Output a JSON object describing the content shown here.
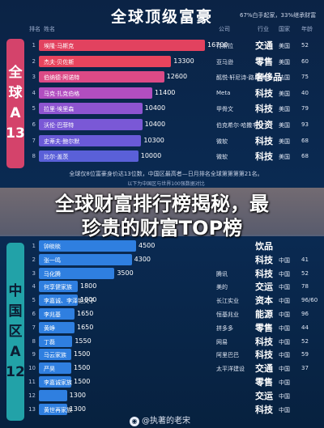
{
  "title": "全球顶级富豪",
  "top_note": "67%白手起家，33%继承财富",
  "global_section": {
    "side_label": [
      "全",
      "球",
      "A",
      "13"
    ],
    "headers": {
      "rank": "排名",
      "name": "姓名",
      "company": "公司",
      "industry": "行业",
      "country": "国家",
      "age": "年龄"
    },
    "rows": [
      {
        "rank": "1",
        "name": "埃隆·马斯克",
        "value": 16700,
        "company": "特斯拉",
        "industry": "交通",
        "country": "美国",
        "age": "52"
      },
      {
        "rank": "2",
        "name": "杰夫·贝佐斯",
        "value": 13300,
        "company": "亚马逊",
        "industry": "零售",
        "country": "美国",
        "age": "60"
      },
      {
        "rank": "3",
        "name": "伯纳德·阿诺特",
        "value": 12600,
        "company": "酩悦·轩尼诗-路易·威登",
        "industry": "奢侈品",
        "country": "法国",
        "age": "75"
      },
      {
        "rank": "4",
        "name": "马克·扎克伯格",
        "value": 11400,
        "company": "Meta",
        "industry": "科技",
        "country": "美国",
        "age": "40"
      },
      {
        "rank": "5",
        "name": "拉里·埃里森",
        "value": 10400,
        "company": "甲骨文",
        "industry": "科技",
        "country": "美国",
        "age": "79"
      },
      {
        "rank": "6",
        "name": "沃伦·巴菲特",
        "value": 10400,
        "company": "伯克希尔·哈撒韦",
        "industry": "投资",
        "country": "美国",
        "age": "93"
      },
      {
        "rank": "7",
        "name": "史蒂夫·鲍尔默",
        "value": 10300,
        "company": "微软",
        "industry": "科技",
        "country": "美国",
        "age": "68"
      },
      {
        "rank": "8",
        "name": "比尔·盖茨",
        "value": 10000,
        "company": "微软",
        "industry": "科技",
        "country": "美国",
        "age": "68"
      }
    ],
    "footnote": "全球仅8位富豪身价达13位数，中国区最高者—日月排名全球第第第第21名。",
    "footnote2": "以下为中国区与世界100强数据对比"
  },
  "banner": {
    "line1": "全球财富排行榜揭秘，最",
    "line2": "珍贵的财富TOP榜"
  },
  "china_section": {
    "side_label": [
      "中",
      "国",
      "区",
      "A",
      "12"
    ],
    "rows": [
      {
        "rank": "1",
        "name": "钟睒睒",
        "value": 4500,
        "company": "",
        "industry": "饮品",
        "country": "",
        "age": ""
      },
      {
        "rank": "2",
        "name": "张一鸣",
        "value": 4300,
        "company": "",
        "industry": "科技",
        "country": "中国",
        "age": "41"
      },
      {
        "rank": "3",
        "name": "马化腾",
        "value": 3500,
        "company": "腾讯",
        "industry": "科技",
        "country": "中国",
        "age": "52"
      },
      {
        "rank": "4",
        "name": "何享健家族",
        "value": 1800,
        "company": "美的",
        "industry": "交运",
        "country": "中国",
        "age": "78"
      },
      {
        "rank": "5",
        "name": "李嘉诚、李泽钜父子",
        "value": 1800,
        "company": "长江实业",
        "industry": "资本",
        "country": "中国",
        "age": "96/60"
      },
      {
        "rank": "6",
        "name": "李兆基",
        "value": 1650,
        "company": "恒基兆业",
        "industry": "能源",
        "country": "中国",
        "age": "96"
      },
      {
        "rank": "7",
        "name": "黄峥",
        "value": 1650,
        "company": "拼多多",
        "industry": "零售",
        "country": "中国",
        "age": "44"
      },
      {
        "rank": "8",
        "name": "丁磊",
        "value": 1550,
        "company": "网易",
        "industry": "科技",
        "country": "中国",
        "age": "52"
      },
      {
        "rank": "9",
        "name": "马云家族",
        "value": 1500,
        "company": "阿里巴巴",
        "industry": "科技",
        "country": "中国",
        "age": "59"
      },
      {
        "rank": "10",
        "name": "严昊",
        "value": 1500,
        "company": "太平洋建设",
        "industry": "交通",
        "country": "中国",
        "age": "37"
      },
      {
        "rank": "11",
        "name": "李嘉诚家族",
        "value": 1500,
        "company": "",
        "industry": "零售",
        "country": "中国",
        "age": ""
      },
      {
        "rank": "12",
        "name": "",
        "value": 1300,
        "company": "",
        "industry": "交运",
        "country": "中国",
        "age": ""
      },
      {
        "rank": "13",
        "name": "黄世再家族",
        "value": 1300,
        "company": "",
        "industry": "科技",
        "country": "中国",
        "age": ""
      }
    ]
  },
  "watermark": "@执著的老宋",
  "colors": {
    "bg": "#0b1e3a",
    "global_side": "#d4436b",
    "china_side": "#22a2a8",
    "global_bars": [
      "#e2425f",
      "#e8445d",
      "#dc4a86",
      "#b24ec0",
      "#8e54d0",
      "#7a58d6",
      "#6a5ad8",
      "#5a60d8"
    ],
    "china_bar": "#2f7fe0"
  }
}
